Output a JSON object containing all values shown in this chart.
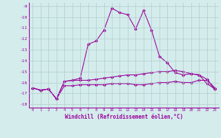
{
  "x": [
    0,
    1,
    2,
    3,
    4,
    5,
    6,
    7,
    8,
    9,
    10,
    11,
    12,
    13,
    14,
    15,
    16,
    17,
    18,
    19,
    20,
    21,
    22,
    23
  ],
  "line_main": [
    -16.5,
    -16.7,
    -16.6,
    -17.5,
    -15.9,
    -15.8,
    -15.6,
    -12.5,
    -12.2,
    -11.2,
    -9.2,
    -9.6,
    -9.8,
    -11.1,
    -9.4,
    -11.2,
    -13.6,
    -14.2,
    -15.1,
    -15.3,
    -15.2,
    -15.3,
    -16.1,
    -16.6
  ],
  "line_mid": [
    -16.5,
    -16.7,
    -16.6,
    -17.5,
    -15.9,
    -15.8,
    -15.8,
    -15.8,
    -15.7,
    -15.6,
    -15.5,
    -15.4,
    -15.3,
    -15.3,
    -15.2,
    -15.1,
    -15.0,
    -15.0,
    -14.9,
    -15.0,
    -15.2,
    -15.3,
    -15.7,
    -16.5
  ],
  "line_low": [
    -16.5,
    -16.7,
    -16.6,
    -17.5,
    -16.3,
    -16.3,
    -16.2,
    -16.2,
    -16.2,
    -16.2,
    -16.1,
    -16.1,
    -16.1,
    -16.2,
    -16.2,
    -16.1,
    -16.0,
    -16.0,
    -15.9,
    -16.0,
    -16.0,
    -15.8,
    -15.8,
    -16.6
  ],
  "color": "#990099",
  "bg_color": "#d4ecec",
  "grid_color": "#b0cccc",
  "xlabel": "Windchill (Refroidissement éolien,°C)",
  "xlim": [
    -0.5,
    23.5
  ],
  "ylim": [
    -18.3,
    -8.7
  ],
  "yticks": [
    -9,
    -10,
    -11,
    -12,
    -13,
    -14,
    -15,
    -16,
    -17,
    -18
  ],
  "xticks": [
    0,
    1,
    2,
    3,
    4,
    5,
    6,
    7,
    8,
    9,
    10,
    11,
    12,
    13,
    14,
    15,
    16,
    17,
    18,
    19,
    20,
    21,
    22,
    23
  ],
  "markersize": 2.5,
  "linewidth": 0.8
}
